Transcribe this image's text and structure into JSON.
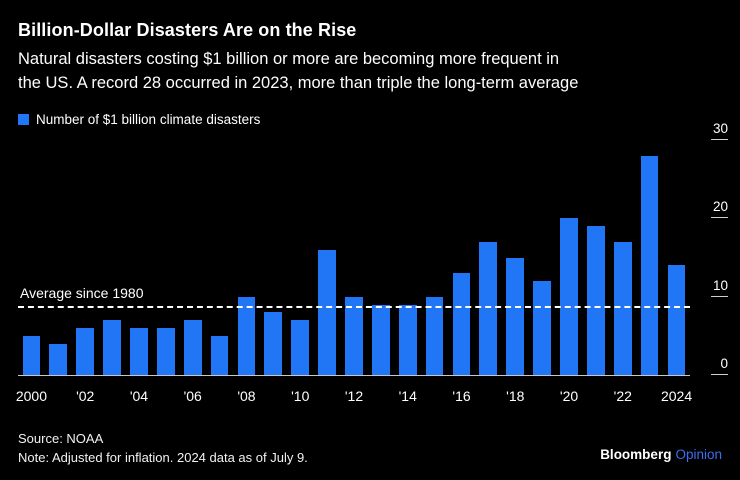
{
  "header": {
    "title": "Billion-Dollar Disasters Are on the Rise",
    "subtitle_line1": "Natural disasters costing $1 billion or more are becoming more frequent in",
    "subtitle_line2": "the US. A record 28 occurred in 2023, more than triple the long-term average"
  },
  "legend": {
    "label": "Number of $1 billion climate disasters"
  },
  "chart_data": {
    "type": "bar",
    "title": "Billion-Dollar Disasters Are on the Rise",
    "x": [
      2000,
      2001,
      2002,
      2003,
      2004,
      2005,
      2006,
      2007,
      2008,
      2009,
      2010,
      2011,
      2012,
      2013,
      2014,
      2015,
      2016,
      2017,
      2018,
      2019,
      2020,
      2021,
      2022,
      2023,
      2024
    ],
    "values": [
      5,
      4,
      6,
      7,
      6,
      6,
      7,
      5,
      10,
      8,
      7,
      16,
      10,
      9,
      9,
      10,
      13,
      17,
      15,
      12,
      20,
      19,
      17,
      28,
      14
    ],
    "x_tick_labels": [
      "2000",
      "'02",
      "'04",
      "'06",
      "'08",
      "'10",
      "'12",
      "'14",
      "'16",
      "'18",
      "'20",
      "'22",
      "2024"
    ],
    "x_tick_indices": [
      0,
      2,
      4,
      6,
      8,
      10,
      12,
      14,
      16,
      18,
      20,
      22,
      24
    ],
    "y_ticks": [
      0,
      10,
      20,
      30
    ],
    "ylim": [
      0,
      30
    ],
    "xlabel": "",
    "ylabel": "Number of $1 billion climate disasters",
    "grid": "off",
    "legend_position": "top-left",
    "average_line": {
      "value": 8.5,
      "label": "Average since 1980"
    },
    "colors": {
      "bar": "#2176f5",
      "background": "#000000",
      "average_line": "#ffffff"
    }
  },
  "footer": {
    "source": "Source: NOAA",
    "note": "Note: Adjusted for inflation. 2024 data as of July 9.",
    "brand": {
      "name": "Bloomberg",
      "suffix": "Opinion",
      "suffix_color": "#3e6ef0"
    }
  }
}
